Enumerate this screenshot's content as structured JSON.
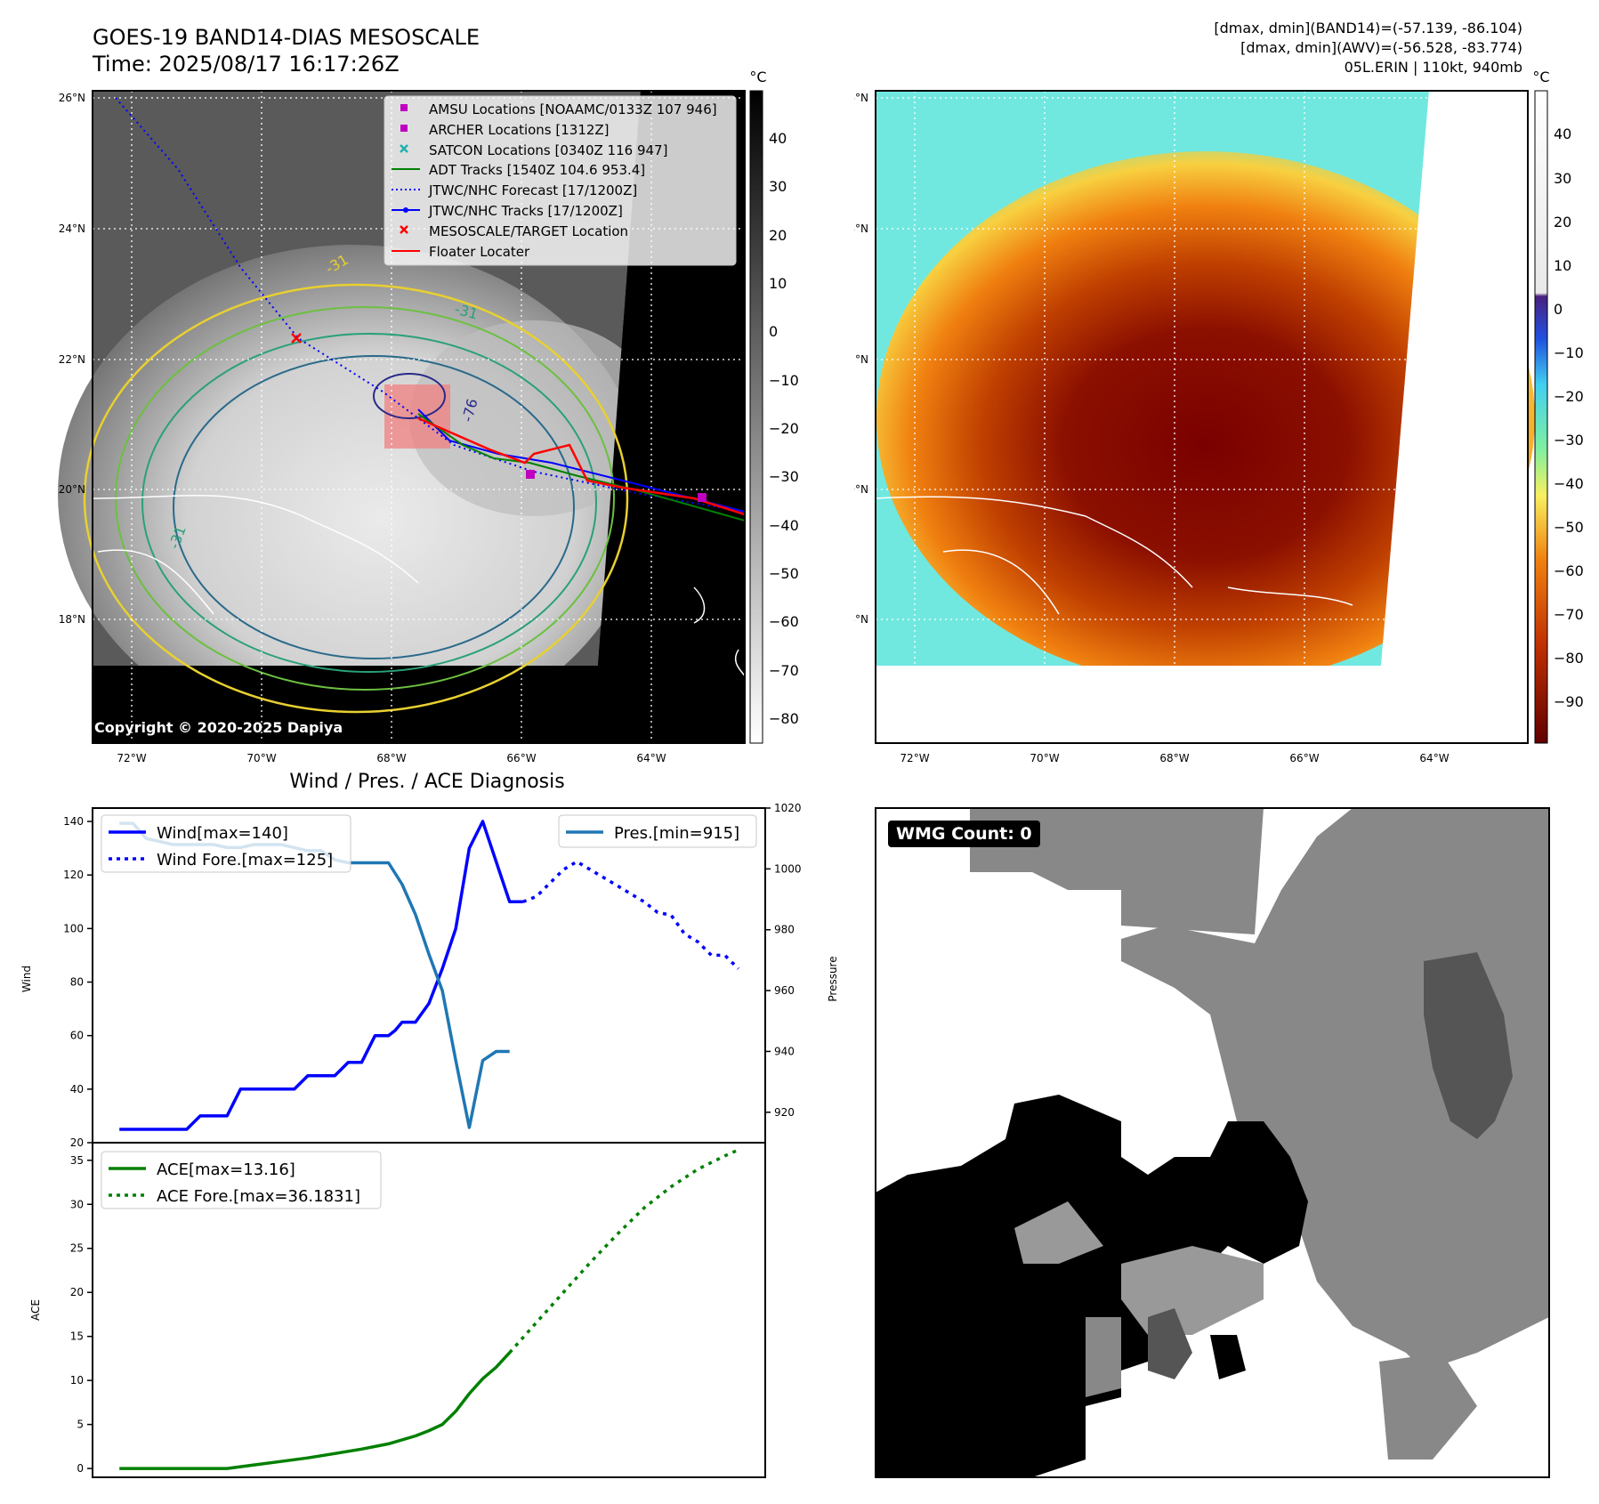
{
  "header": {
    "title_line1": "GOES-19 BAND14-DIAS MESOSCALE",
    "title_line2": "Time: 2025/08/17 16:17:26Z",
    "info_line1": "[dmax, dmin](BAND14)=(-57.139, -86.104)",
    "info_line2": "[dmax, dmin](AWV)=(-56.528, -83.774)",
    "info_line3": "05L.ERIN | 110kt, 940mb"
  },
  "maps": {
    "lat_labels": [
      "26°N",
      "24°N",
      "22°N",
      "20°N",
      "18°N"
    ],
    "lon_labels": [
      "72°W",
      "70°W",
      "68°W",
      "66°W",
      "64°W"
    ],
    "colorbar_unit": "°C",
    "gray_colorbar_ticks": [
      "40",
      "30",
      "20",
      "10",
      "0",
      "−10",
      "−20",
      "−30",
      "−40",
      "−50",
      "−60",
      "−70",
      "−80"
    ],
    "color_colorbar_ticks": [
      "40",
      "30",
      "20",
      "10",
      "0",
      "−10",
      "−20",
      "−30",
      "−40",
      "−50",
      "−60",
      "−70",
      "−80",
      "−90"
    ],
    "copyright": "Copyright © 2020-2025 Dapiya",
    "contour_labels": [
      "-76",
      "-31",
      "-31",
      "-31"
    ],
    "legend": [
      {
        "label": "AMSU Locations [NOAAMC/0133Z 107 946]",
        "marker": "square",
        "color": "#c000c0"
      },
      {
        "label": "ARCHER Locations [1312Z]",
        "marker": "square",
        "color": "#c000c0"
      },
      {
        "label": "SATCON Locations [0340Z 116 947]",
        "marker": "x",
        "color": "#20b0b0"
      },
      {
        "label": "ADT Tracks [1540Z 104.6 953.4]",
        "marker": "line",
        "color": "#008000"
      },
      {
        "label": "JTWC/NHC Forecast [17/1200Z]",
        "marker": "dotted",
        "color": "#0000ff"
      },
      {
        "label": "JTWC/NHC Tracks [17/1200Z]",
        "marker": "line-dot",
        "color": "#0000ff"
      },
      {
        "label": "MESOSCALE/TARGET Location",
        "marker": "x",
        "color": "#ff0000"
      },
      {
        "label": "Floater Locater",
        "marker": "line",
        "color": "#ff0000"
      }
    ]
  },
  "diagnosis": {
    "title": "Wind / Pres. / ACE Diagnosis",
    "wind_ylabel": "Wind",
    "pressure_ylabel": "Pressure",
    "ace_ylabel": "ACE",
    "wind_legend": [
      "Wind[max=140]",
      "Wind Fore.[max=125]"
    ],
    "pres_legend": "Pres.[min=915]",
    "ace_legend": [
      "ACE[max=13.16]",
      "ACE Fore.[max=36.1831]"
    ]
  },
  "wmg": {
    "badge": "WMG Count: 0"
  },
  "chart_data": [
    {
      "type": "line",
      "title": "",
      "ylabel": "Wind",
      "ylim": [
        20,
        145
      ],
      "yticks": [
        20,
        40,
        60,
        80,
        100,
        120,
        140
      ],
      "x": [
        0,
        1,
        2,
        3,
        4,
        5,
        6,
        7,
        8,
        9,
        10,
        11,
        12,
        13,
        14,
        15,
        16,
        17,
        18,
        19,
        20,
        21,
        22,
        23,
        24,
        25,
        26,
        27,
        28,
        29,
        30,
        31,
        32,
        33,
        34,
        35,
        36,
        37,
        38,
        39,
        40,
        41,
        42,
        43,
        44,
        45,
        46
      ],
      "series": [
        {
          "name": "Wind[max=140]",
          "style": "solid",
          "color": "#0000ff",
          "points": [
            [
              0,
              25
            ],
            [
              4,
              25
            ],
            [
              5,
              25
            ],
            [
              6,
              30
            ],
            [
              8,
              30
            ],
            [
              9,
              40
            ],
            [
              13,
              40
            ],
            [
              14,
              45
            ],
            [
              16,
              45
            ],
            [
              17,
              50
            ],
            [
              18,
              50
            ],
            [
              18.5,
              55
            ],
            [
              19,
              60
            ],
            [
              20,
              60
            ],
            [
              20.5,
              62
            ],
            [
              21,
              65
            ],
            [
              22,
              65
            ],
            [
              23,
              72
            ],
            [
              24,
              85
            ],
            [
              25,
              100
            ],
            [
              26,
              130
            ],
            [
              27,
              140
            ],
            [
              28,
              125
            ],
            [
              29,
              110
            ],
            [
              30,
              110
            ]
          ]
        },
        {
          "name": "Wind Fore.[max=125]",
          "style": "dotted",
          "color": "#0000ff",
          "points": [
            [
              30,
              110
            ],
            [
              31,
              112
            ],
            [
              32,
              117
            ],
            [
              33,
              122
            ],
            [
              34,
              125
            ],
            [
              35,
              122
            ],
            [
              36,
              119
            ],
            [
              37,
              116
            ],
            [
              38,
              113
            ],
            [
              39,
              110
            ],
            [
              40,
              106
            ],
            [
              41,
              105
            ],
            [
              42,
              98
            ],
            [
              43,
              95
            ],
            [
              44,
              90
            ],
            [
              45,
              90
            ],
            [
              46,
              85
            ]
          ]
        }
      ]
    },
    {
      "type": "line",
      "ylabel": "Pressure",
      "ylim": [
        910,
        1020
      ],
      "yticks": [
        920,
        940,
        960,
        980,
        1000,
        1020
      ],
      "series": [
        {
          "name": "Pres.[min=915]",
          "style": "solid",
          "color": "#1f77b4",
          "points": [
            [
              0,
              1015
            ],
            [
              1,
              1015
            ],
            [
              2,
              1010
            ],
            [
              3,
              1009
            ],
            [
              4,
              1008
            ],
            [
              5,
              1008
            ],
            [
              6,
              1008
            ],
            [
              7,
              1008
            ],
            [
              8,
              1007
            ],
            [
              9,
              1007
            ],
            [
              10,
              1008
            ],
            [
              11,
              1008
            ],
            [
              12,
              1008
            ],
            [
              13,
              1007
            ],
            [
              14,
              1006
            ],
            [
              15,
              1006
            ],
            [
              16,
              1003
            ],
            [
              17,
              1002
            ],
            [
              18,
              1002
            ],
            [
              19,
              1002
            ],
            [
              20,
              1002
            ],
            [
              21,
              995
            ],
            [
              22,
              985
            ],
            [
              23,
              972
            ],
            [
              24,
              960
            ],
            [
              25,
              937
            ],
            [
              26,
              915
            ],
            [
              27,
              937
            ],
            [
              28,
              940
            ],
            [
              29,
              940
            ]
          ]
        }
      ]
    },
    {
      "type": "line",
      "title": "",
      "ylabel": "ACE",
      "ylim": [
        -1,
        37
      ],
      "yticks": [
        0,
        5,
        10,
        15,
        20,
        25,
        30,
        35
      ],
      "series": [
        {
          "name": "ACE[max=13.16]",
          "style": "solid",
          "color": "#008000",
          "points": [
            [
              0,
              0
            ],
            [
              8,
              0
            ],
            [
              10,
              0.4
            ],
            [
              12,
              0.8
            ],
            [
              14,
              1.2
            ],
            [
              16,
              1.7
            ],
            [
              18,
              2.2
            ],
            [
              20,
              2.8
            ],
            [
              22,
              3.7
            ],
            [
              23,
              4.3
            ],
            [
              24,
              5.0
            ],
            [
              25,
              6.5
            ],
            [
              26,
              8.5
            ],
            [
              27,
              10.2
            ],
            [
              28,
              11.5
            ],
            [
              29,
              13.16
            ]
          ]
        },
        {
          "name": "ACE Fore.[max=36.1831]",
          "style": "dotted",
          "color": "#008000",
          "points": [
            [
              29,
              13.16
            ],
            [
              31,
              16.6
            ],
            [
              33,
              20.0
            ],
            [
              35,
              23.4
            ],
            [
              37,
              26.6
            ],
            [
              39,
              29.6
            ],
            [
              41,
              32.0
            ],
            [
              43,
              34.0
            ],
            [
              45,
              35.5
            ],
            [
              46,
              36.18
            ]
          ]
        }
      ]
    }
  ]
}
